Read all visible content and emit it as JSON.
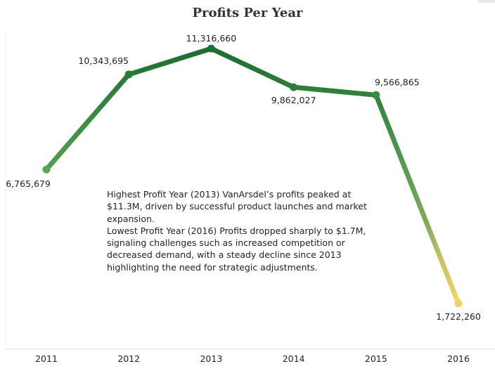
{
  "chart_data": {
    "type": "line",
    "title": "Profits Per Year",
    "xlabel": "",
    "ylabel": "",
    "categories": [
      "2011",
      "2012",
      "2013",
      "2014",
      "2015",
      "2016"
    ],
    "values": [
      6765679,
      10343695,
      11316660,
      9862027,
      9566865,
      1722260
    ],
    "data_labels": [
      "6,765,679",
      "10,343,695",
      "11,316,660",
      "9,862,027",
      "9,566,865",
      "1,722,260"
    ],
    "ylim": [
      0,
      12000000
    ],
    "grid": false,
    "legend": "none",
    "colors": {
      "high": "#1b6b2e",
      "mid": "#4f9a4f",
      "low": "#f2d46b"
    },
    "annotation": {
      "line1": " Highest Profit Year (2013) VanArsdel’s profits peaked at $11.3M, driven by successful product launches and market expansion.",
      "line2": "Lowest Profit Year (2016) Profits dropped sharply to $1.7M, signaling challenges such as increased competition or decreased demand, with a steady decline since 2013 highlighting the need for strategic adjustments."
    }
  }
}
